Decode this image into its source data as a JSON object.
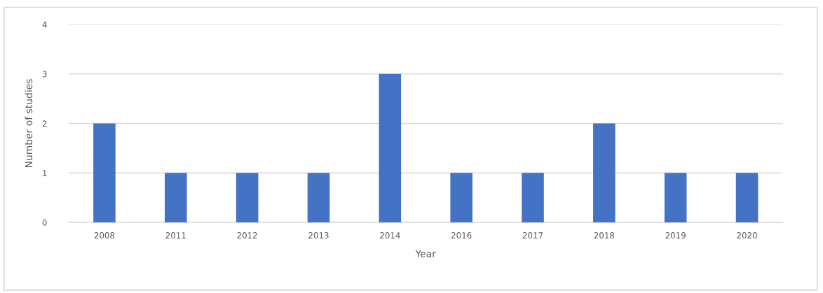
{
  "chart_data": {
    "type": "bar",
    "xlabel": "Year",
    "ylabel": "Number of studies",
    "categories": [
      "2008",
      "2011",
      "2012",
      "2013",
      "2014",
      "2016",
      "2017",
      "2018",
      "2019",
      "2020"
    ],
    "values": [
      2,
      1,
      1,
      1,
      3,
      1,
      1,
      2,
      1,
      1
    ],
    "color": "#4472c4",
    "ylim": [
      0,
      4
    ],
    "yticks": [
      0,
      1,
      2,
      3,
      4
    ],
    "grid": "y",
    "legend": false
  }
}
